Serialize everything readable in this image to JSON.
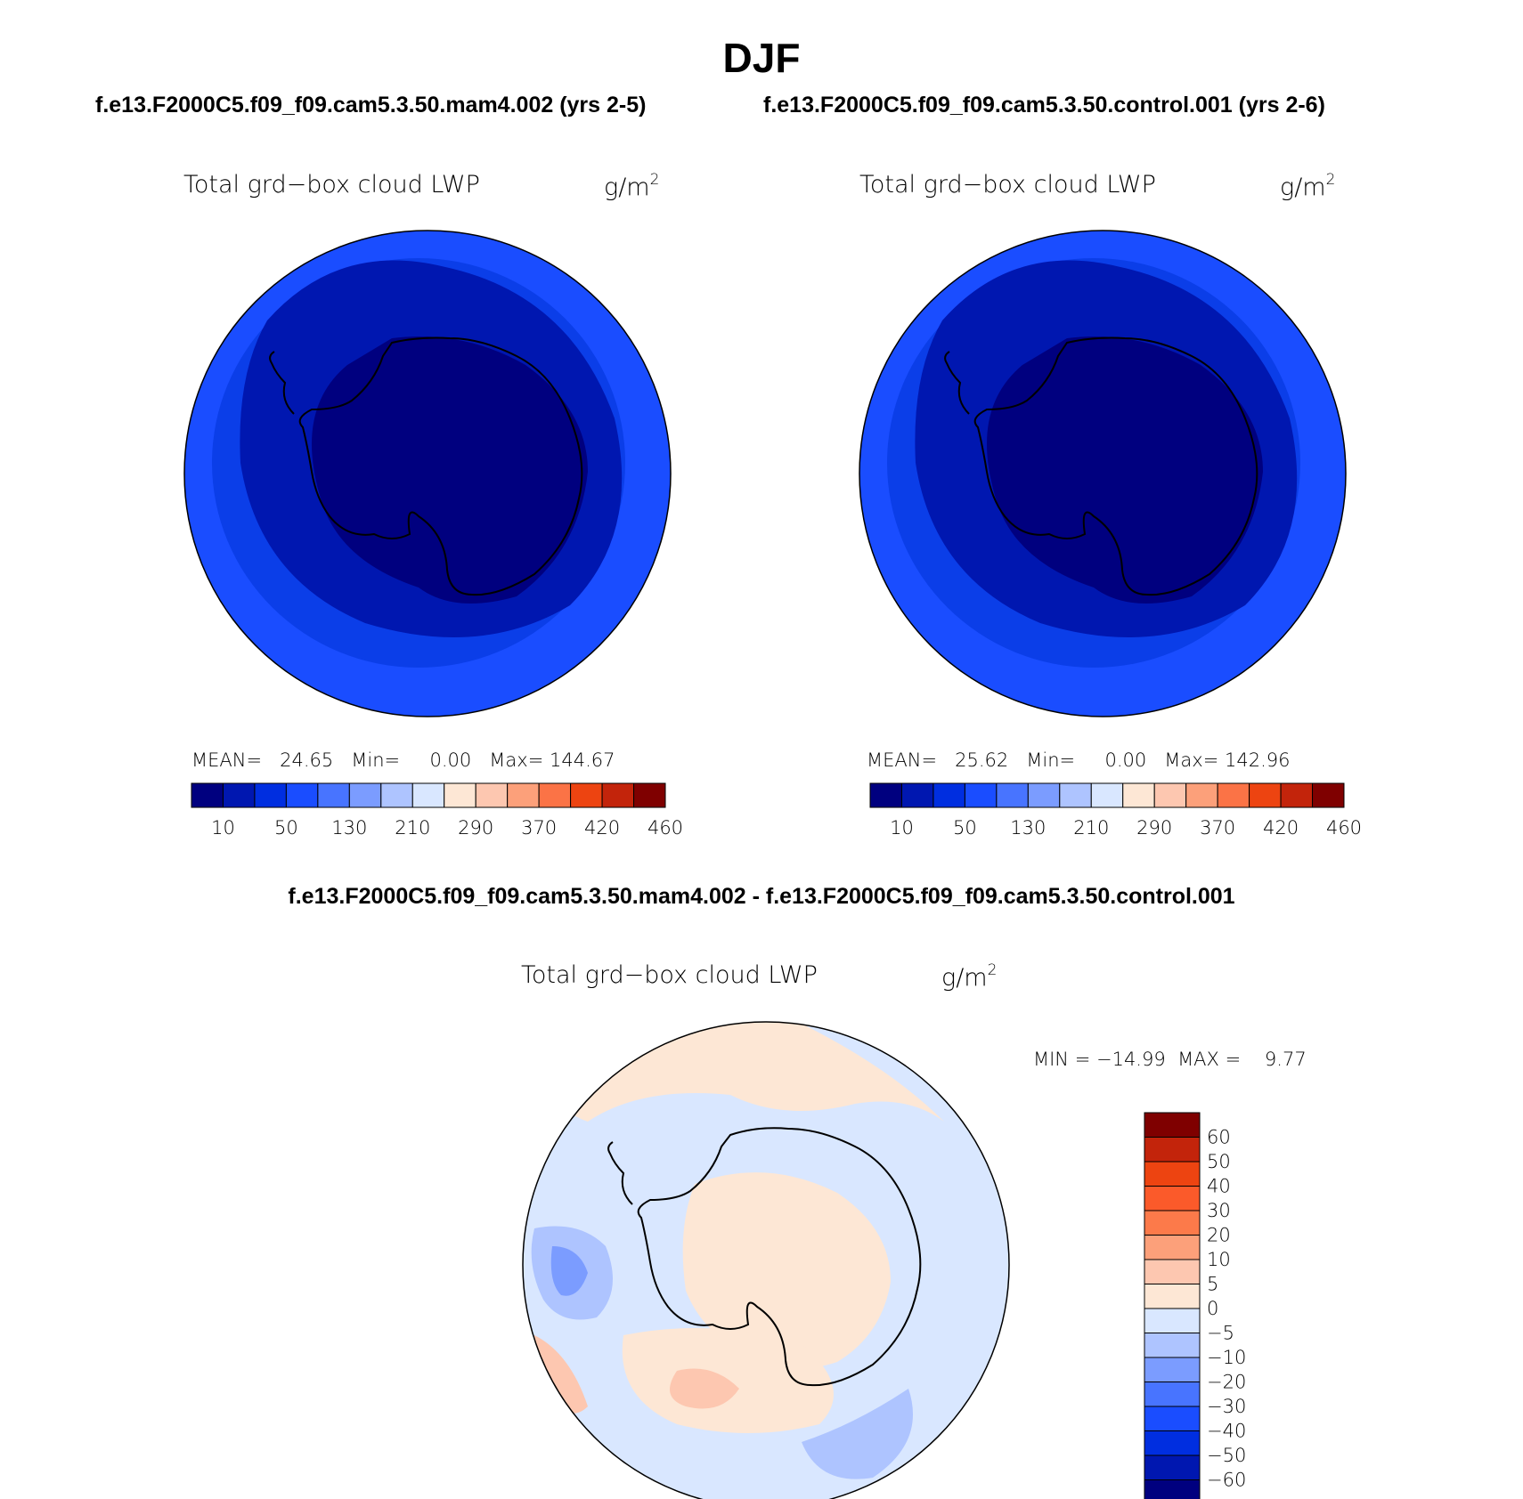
{
  "title": "DJF",
  "panels": [
    {
      "run_title": "f.e13.F2000C5.f09_f09.cam5.3.50.mam4.002 (yrs 2-5)",
      "field": "Total grd−box cloud LWP",
      "units": "g/m",
      "units_sup": "2",
      "mean_label": "MEAN=",
      "mean": "24.65",
      "min_label": "Min=",
      "min": "0.00",
      "max_label": "Max=",
      "max": "144.67"
    },
    {
      "run_title": "f.e13.F2000C5.f09_f09.cam5.3.50.control.001 (yrs 2-6)",
      "field": "Total grd−box cloud LWP",
      "units": "g/m",
      "units_sup": "2",
      "mean_label": "MEAN=",
      "mean": "25.62",
      "min_label": "Min=",
      "min": "0.00",
      "max_label": "Max=",
      "max": "142.96"
    }
  ],
  "difference": {
    "title": "f.e13.F2000C5.f09_f09.cam5.3.50.mam4.002 - f.e13.F2000C5.f09_f09.cam5.3.50.control.001",
    "field": "Total grd−box cloud LWP",
    "units": "g/m",
    "units_sup": "2",
    "min_label": "MIN =",
    "min": "−14.99",
    "max_label": "MAX =",
    "max": "9.77"
  },
  "chart_data": [
    {
      "type": "heatmap",
      "projection": "south polar stereographic",
      "colorbar_orientation": "horizontal",
      "colorbar_tick_labels": [
        "10",
        "50",
        "130",
        "210",
        "290",
        "370",
        "420",
        "460"
      ],
      "colorbar_colors": [
        "#00007f",
        "#0017b0",
        "#002ee0",
        "#1a4dff",
        "#4874ff",
        "#7b9cff",
        "#aec4ff",
        "#d9e7ff",
        "#fde7d5",
        "#fdc7b0",
        "#fca07a",
        "#fb7346",
        "#ed4411",
        "#c3240b",
        "#7f0000"
      ]
    },
    {
      "type": "heatmap",
      "projection": "south polar stereographic",
      "colorbar_orientation": "horizontal",
      "colorbar_tick_labels": [
        "10",
        "50",
        "130",
        "210",
        "290",
        "370",
        "420",
        "460"
      ],
      "colorbar_colors": [
        "#00007f",
        "#0017b0",
        "#002ee0",
        "#1a4dff",
        "#4874ff",
        "#7b9cff",
        "#aec4ff",
        "#d9e7ff",
        "#fde7d5",
        "#fdc7b0",
        "#fca07a",
        "#fb7346",
        "#ed4411",
        "#c3240b",
        "#7f0000"
      ]
    },
    {
      "type": "heatmap",
      "projection": "south polar stereographic",
      "colorbar_orientation": "vertical",
      "colorbar_tick_labels": [
        "60",
        "50",
        "40",
        "30",
        "20",
        "10",
        "5",
        "0",
        "−5",
        "−10",
        "−20",
        "−30",
        "−40",
        "−50",
        "−60"
      ],
      "colorbar_colors": [
        "#7f0000",
        "#c3240b",
        "#ed4411",
        "#fb5a2a",
        "#fc7a4a",
        "#fca07a",
        "#fdc7b0",
        "#fde7d5",
        "#d9e7ff",
        "#aec4ff",
        "#7b9cff",
        "#4874ff",
        "#1a4dff",
        "#002ee0",
        "#0017b0",
        "#00007f"
      ]
    }
  ]
}
